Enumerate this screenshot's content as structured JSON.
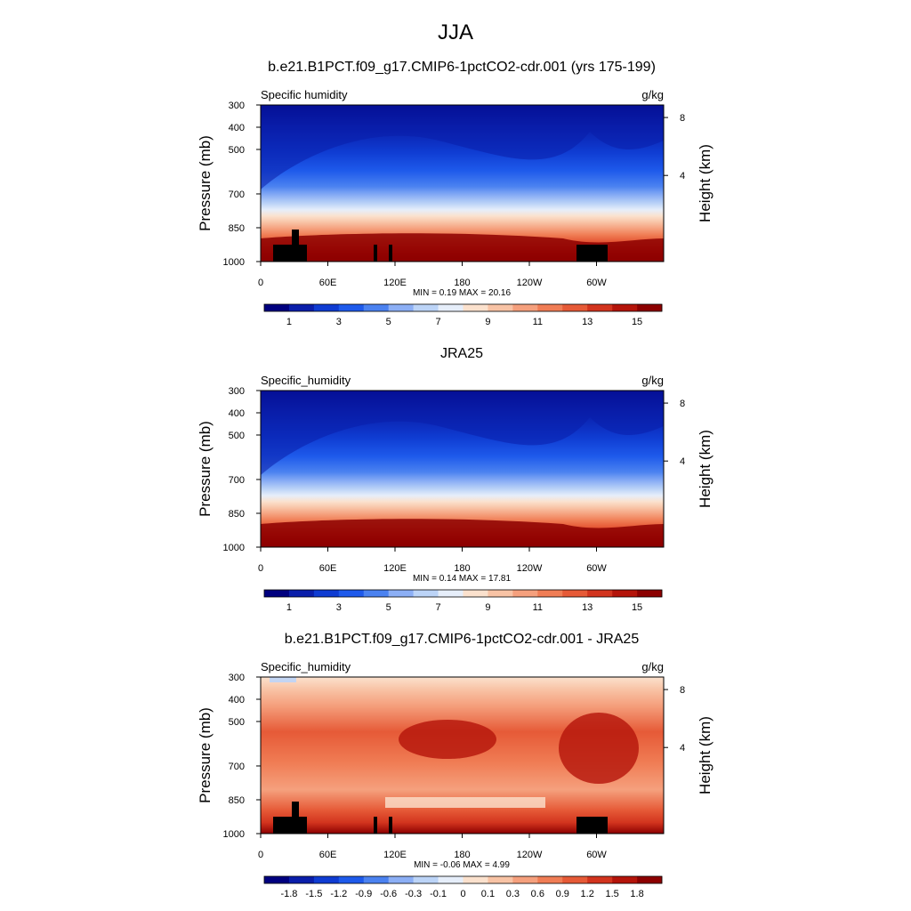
{
  "figure": {
    "title": "JJA"
  },
  "chart_data": [
    {
      "type": "heatmap",
      "title": "b.e21.B1PCT.f09_g17.CMIP6-1pctCO2-cdr.001 (yrs 175-199)",
      "variable": "Specific humidity",
      "units": "g/kg",
      "ylabel": "Pressure (mb)",
      "ylabel_right": "Height (km)",
      "y_ticks": [
        "300",
        "400",
        "500",
        "700",
        "850",
        "1000"
      ],
      "y_ticks_right": [
        "8",
        "4"
      ],
      "x_ticks": [
        "0",
        "60E",
        "120E",
        "180",
        "120W",
        "60W"
      ],
      "stats": "MIN =   0.19  MAX =  20.16",
      "min": 0.19,
      "max": 20.16,
      "colorbar_labels": [
        "1",
        "3",
        "5",
        "7",
        "9",
        "11",
        "13",
        "15"
      ],
      "colors": [
        "#00007f",
        "#0a1eaa",
        "#0f3cd2",
        "#1e5aeb",
        "#4b82f0",
        "#8caff5",
        "#bcd4f7",
        "#e6eefa",
        "#fbe1cd",
        "#f8c3a5",
        "#f5a07d",
        "#f07d55",
        "#e65a37",
        "#d2341e",
        "#b4140a",
        "#8c0000"
      ],
      "has_terrain": true
    },
    {
      "type": "heatmap",
      "title": "JRA25",
      "variable": "Specific_humidity",
      "units": "g/kg",
      "ylabel": "Pressure (mb)",
      "ylabel_right": "Height (km)",
      "y_ticks": [
        "300",
        "400",
        "500",
        "700",
        "850",
        "1000"
      ],
      "y_ticks_right": [
        "8",
        "4"
      ],
      "x_ticks": [
        "0",
        "60E",
        "120E",
        "180",
        "120W",
        "60W"
      ],
      "stats": "MIN =   0.14  MAX =  17.81",
      "min": 0.14,
      "max": 17.81,
      "colorbar_labels": [
        "1",
        "3",
        "5",
        "7",
        "9",
        "11",
        "13",
        "15"
      ],
      "colors": [
        "#00007f",
        "#0a1eaa",
        "#0f3cd2",
        "#1e5aeb",
        "#4b82f0",
        "#8caff5",
        "#bcd4f7",
        "#e6eefa",
        "#fbe1cd",
        "#f8c3a5",
        "#f5a07d",
        "#f07d55",
        "#e65a37",
        "#d2341e",
        "#b4140a",
        "#8c0000"
      ],
      "has_terrain": false
    },
    {
      "type": "heatmap",
      "title": "b.e21.B1PCT.f09_g17.CMIP6-1pctCO2-cdr.001 - JRA25",
      "variable": "Specific_humidity",
      "units": "g/kg",
      "ylabel": "Pressure (mb)",
      "ylabel_right": "Height (km)",
      "y_ticks": [
        "300",
        "400",
        "500",
        "700",
        "850",
        "1000"
      ],
      "y_ticks_right": [
        "8",
        "4"
      ],
      "x_ticks": [
        "0",
        "60E",
        "120E",
        "180",
        "120W",
        "60W"
      ],
      "stats": "MIN =  -0.06  MAX =   4.99",
      "min": -0.06,
      "max": 4.99,
      "colorbar_labels": [
        "-1.8",
        "-1.5",
        "-1.2",
        "-0.9",
        "-0.6",
        "-0.3",
        "-0.1",
        "0",
        "0.1",
        "0.3",
        "0.6",
        "0.9",
        "1.2",
        "1.5",
        "1.8"
      ],
      "colors": [
        "#00007f",
        "#0a1eaa",
        "#0f3cd2",
        "#1e5aeb",
        "#4b82f0",
        "#8caff5",
        "#bcd4f7",
        "#e6eefa",
        "#fbe1cd",
        "#f8c3a5",
        "#f5a07d",
        "#f07d55",
        "#e65a37",
        "#d2341e",
        "#b4140a",
        "#8c0000"
      ],
      "has_terrain": true
    }
  ]
}
